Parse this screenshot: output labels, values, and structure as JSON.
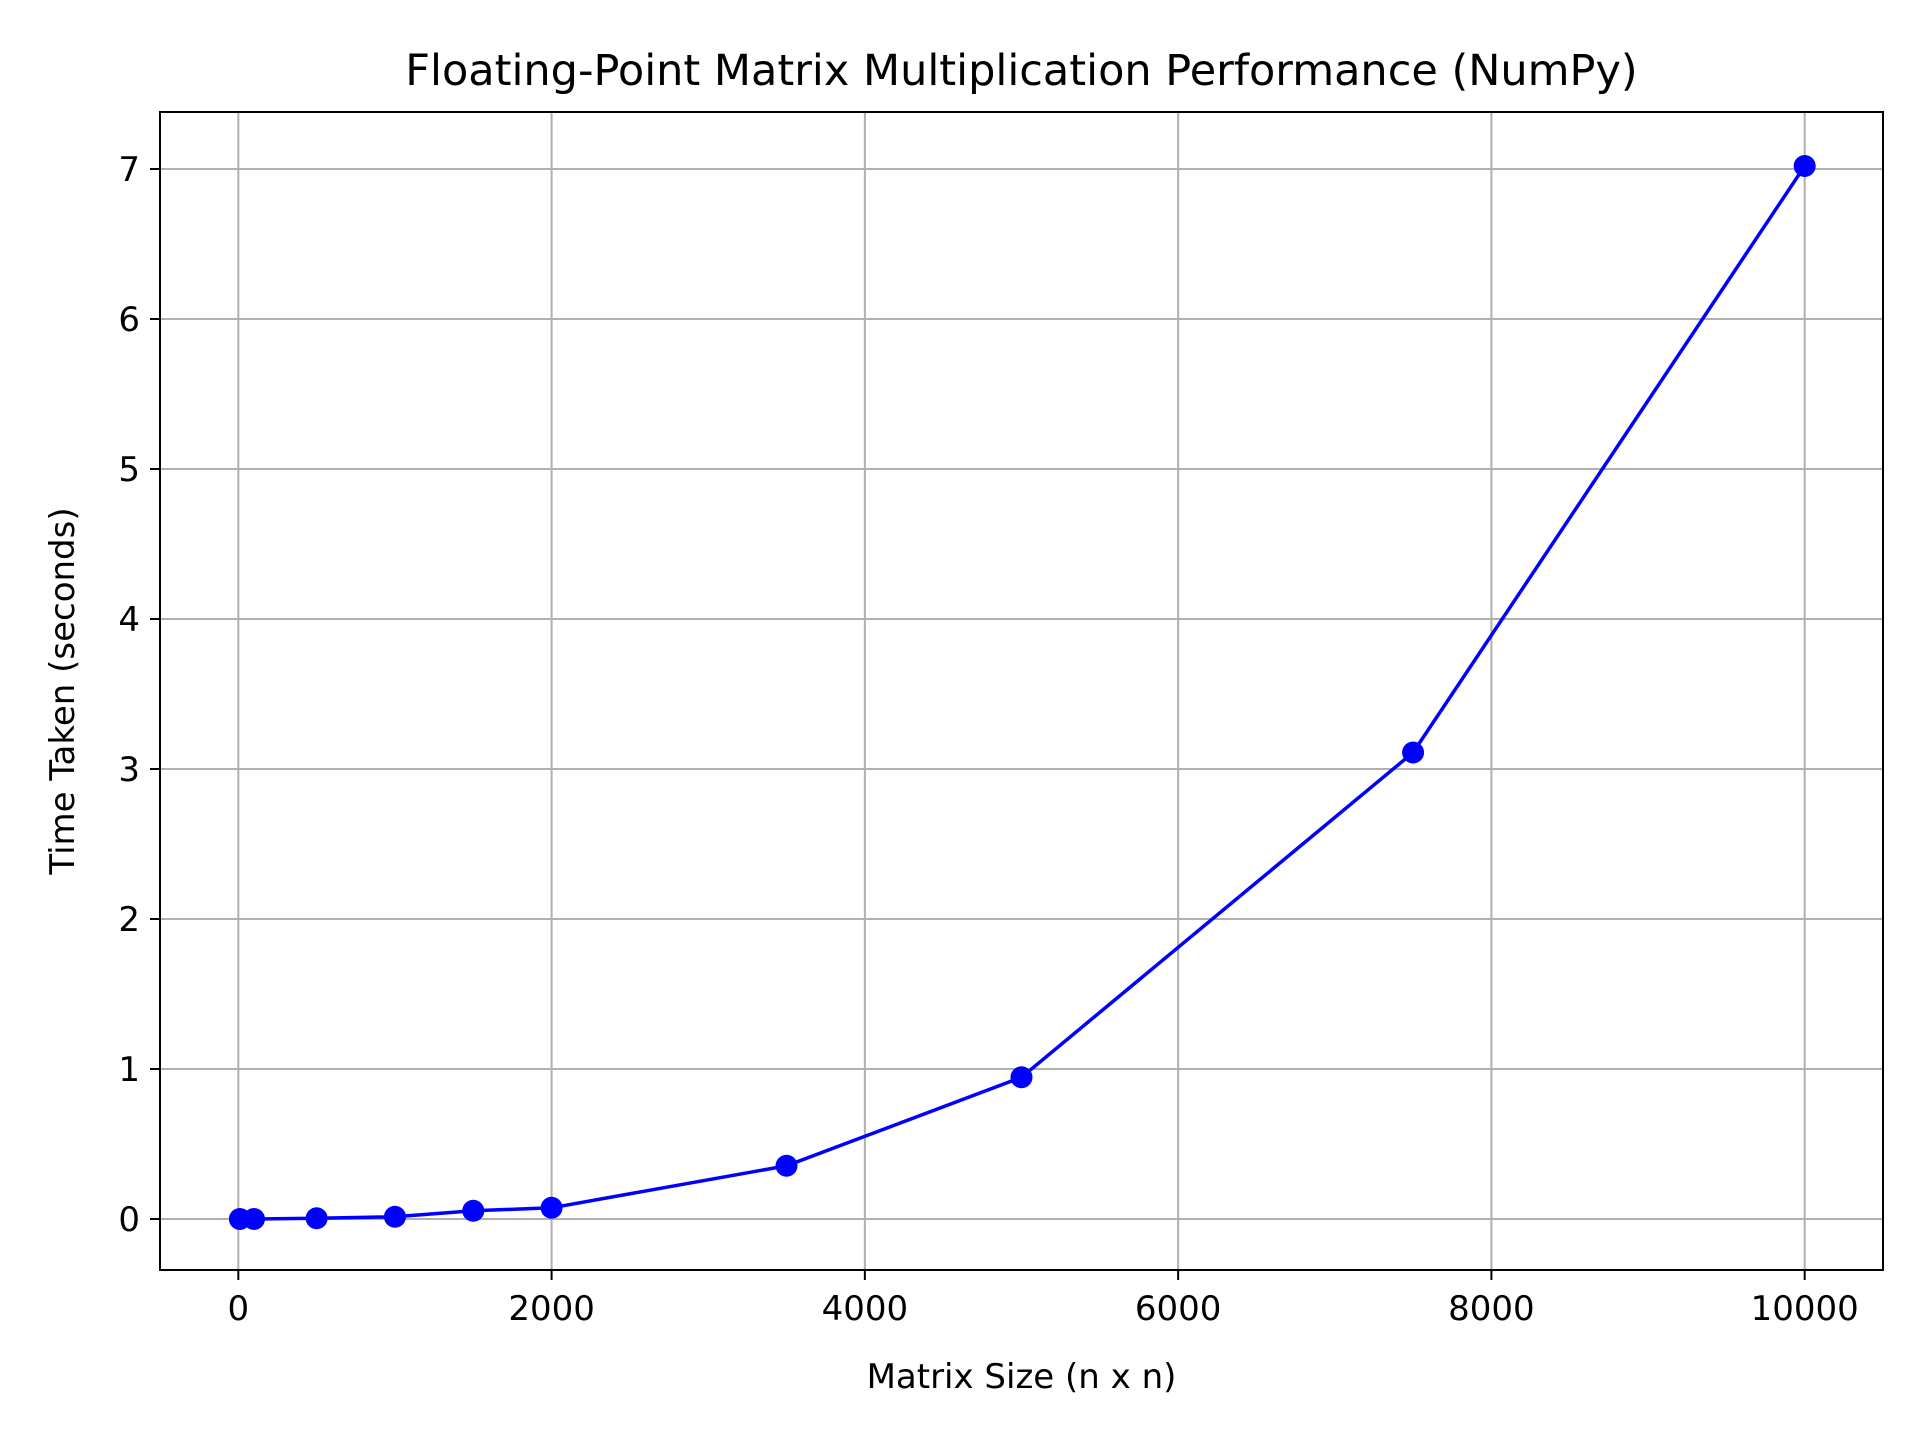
{
  "chart_data": {
    "type": "line",
    "title": "Floating-Point Matrix Multiplication Performance (NumPy)",
    "xlabel": "Matrix Size (n x n)",
    "ylabel": "Time Taken (seconds)",
    "xlim": [
      -500,
      10500
    ],
    "ylim": [
      -0.34,
      7.38
    ],
    "x_ticks": [
      0,
      2000,
      4000,
      6000,
      8000,
      10000
    ],
    "y_ticks": [
      0,
      1,
      2,
      3,
      4,
      5,
      6,
      7
    ],
    "x_tick_labels": [
      "0",
      "2000",
      "4000",
      "6000",
      "8000",
      "10000"
    ],
    "y_tick_labels": [
      "0",
      "1",
      "2",
      "3",
      "4",
      "5",
      "6",
      "7"
    ],
    "grid": true,
    "series": [
      {
        "color": "#0000ff",
        "marker": "circle",
        "x": [
          10,
          100,
          500,
          1000,
          1500,
          2000,
          3500,
          5000,
          7500,
          10000
        ],
        "y": [
          0.0,
          0.0,
          0.005,
          0.015,
          0.055,
          0.075,
          0.355,
          0.945,
          3.11,
          7.02
        ]
      }
    ]
  }
}
